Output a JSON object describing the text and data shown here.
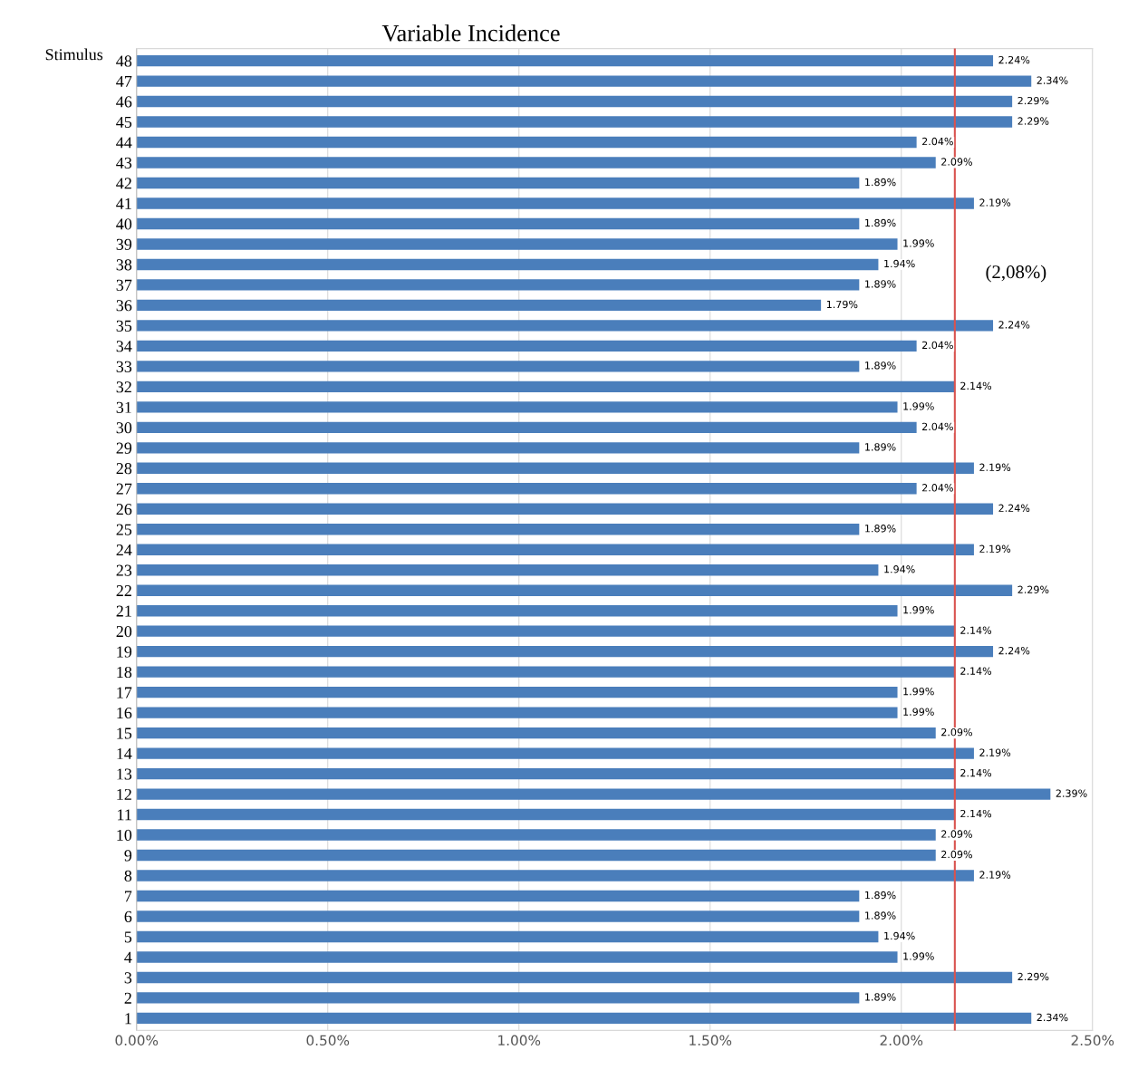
{
  "chart_data": {
    "type": "bar",
    "orientation": "horizontal",
    "title": "Variable Incidence",
    "ylabel": "Stimulus",
    "categories": [
      "48",
      "47",
      "46",
      "45",
      "44",
      "43",
      "42",
      "41",
      "40",
      "39",
      "38",
      "37",
      "36",
      "35",
      "34",
      "33",
      "32",
      "31",
      "30",
      "29",
      "28",
      "27",
      "26",
      "25",
      "24",
      "23",
      "22",
      "21",
      "20",
      "19",
      "18",
      "17",
      "16",
      "15",
      "14",
      "13",
      "12",
      "11",
      "10",
      "9",
      "8",
      "7",
      "6",
      "5",
      "4",
      "3",
      "2",
      "1"
    ],
    "values": [
      2.24,
      2.34,
      2.29,
      2.29,
      2.04,
      2.09,
      1.89,
      2.19,
      1.89,
      1.99,
      1.94,
      1.89,
      1.79,
      2.24,
      2.04,
      1.89,
      2.14,
      1.99,
      2.04,
      1.89,
      2.19,
      2.04,
      2.24,
      1.89,
      2.19,
      1.94,
      2.29,
      1.99,
      2.14,
      2.24,
      2.14,
      1.99,
      1.99,
      2.09,
      2.19,
      2.14,
      2.39,
      2.14,
      2.09,
      2.09,
      2.19,
      1.89,
      1.89,
      1.94,
      1.99,
      2.29,
      1.89,
      2.34
    ],
    "value_labels": [
      "2.24%",
      "2.34%",
      "2.29%",
      "2.29%",
      "2.04%",
      "2.09%",
      "1.89%",
      "2.19%",
      "1.89%",
      "1.99%",
      "1.94%",
      "1.89%",
      "1.79%",
      "2.24%",
      "2.04%",
      "1.89%",
      "2.14%",
      "1.99%",
      "2.04%",
      "1.89%",
      "2.19%",
      "2.04%",
      "2.24%",
      "1.89%",
      "2.19%",
      "1.94%",
      "2.29%",
      "1.99%",
      "2.14%",
      "2.24%",
      "2.14%",
      "1.99%",
      "1.99%",
      "2.09%",
      "2.19%",
      "2.14%",
      "2.39%",
      "2.14%",
      "2.09%",
      "2.09%",
      "2.19%",
      "1.89%",
      "1.89%",
      "1.94%",
      "1.99%",
      "2.29%",
      "1.89%",
      "2.34%"
    ],
    "color": "#4a7ebb",
    "xlim": [
      0,
      2.5
    ],
    "xticks": [
      {
        "value": 0,
        "label": "0.00%"
      },
      {
        "value": 0.5,
        "label": "0.50%"
      },
      {
        "value": 1.0,
        "label": "1.00%"
      },
      {
        "value": 1.5,
        "label": "1.50%"
      },
      {
        "value": 2.0,
        "label": "2.00%"
      },
      {
        "value": 2.5,
        "label": "2.50%"
      }
    ],
    "grid": "x",
    "ref_lines": [
      {
        "axis": "x",
        "value": 2.14,
        "color": "#d9534f"
      }
    ],
    "annotations": [
      "(2,08%)"
    ]
  }
}
